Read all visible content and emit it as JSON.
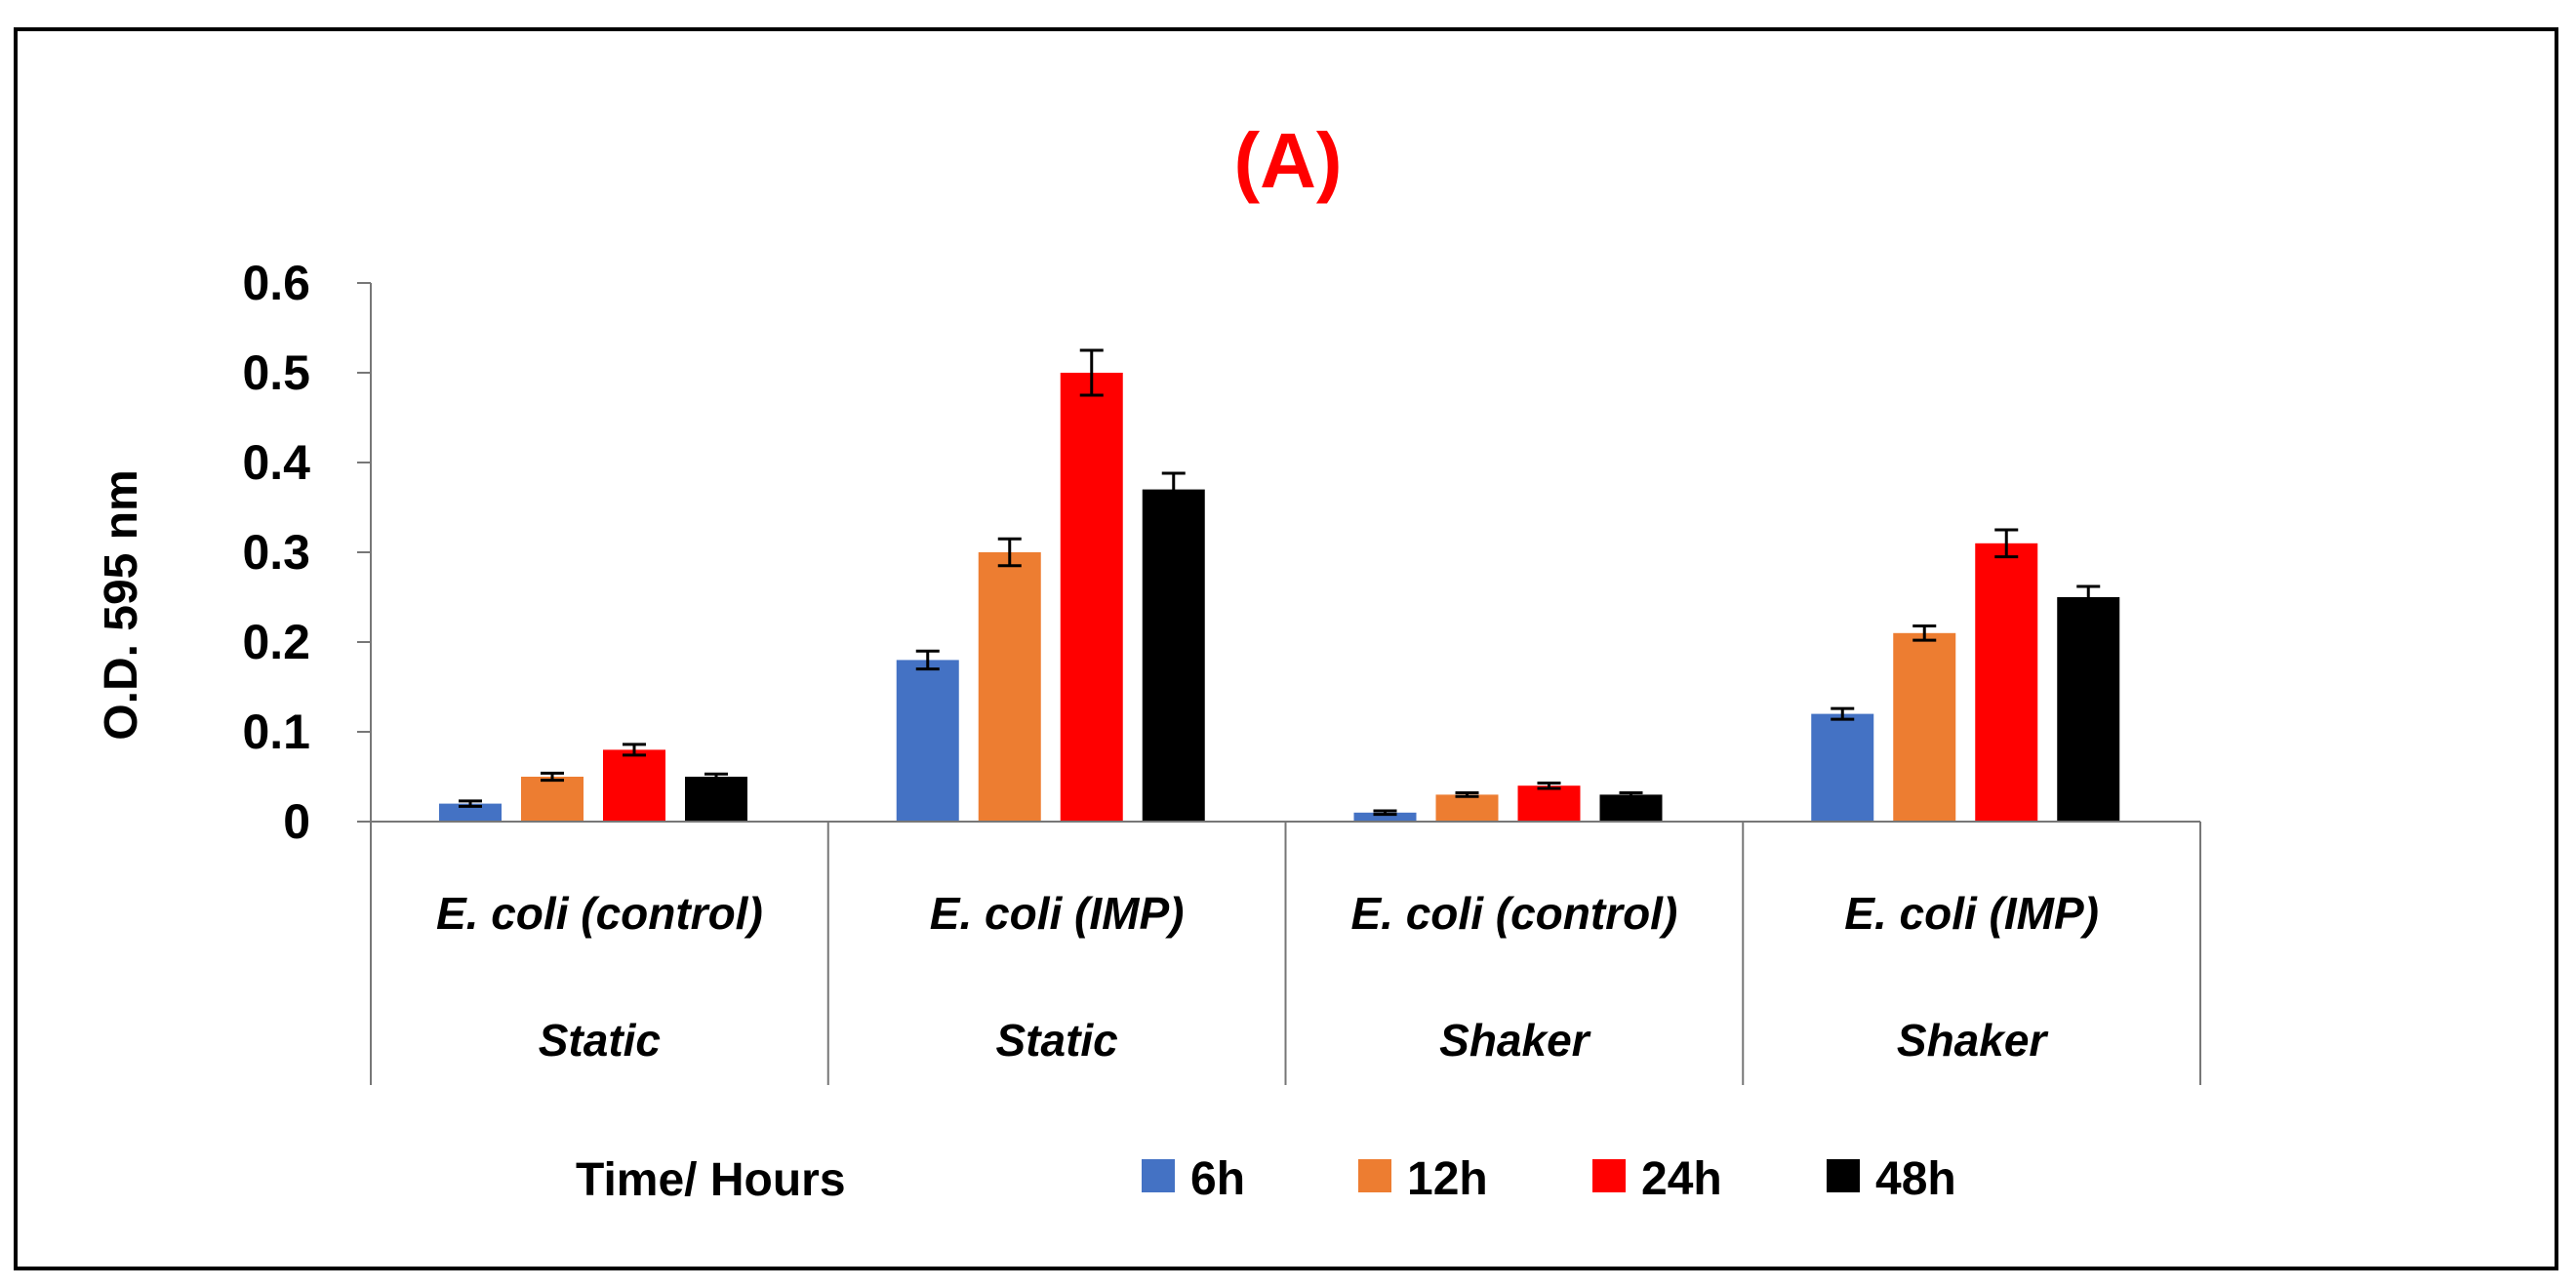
{
  "chart_data": {
    "type": "bar",
    "title": "(A)",
    "title_color": "#ff0000",
    "ylabel": "O.D. 595 nm",
    "xlabel": "Time/ Hours",
    "ylim": [
      0,
      0.6
    ],
    "yticks": [
      "0",
      "0.1",
      "0.2",
      "0.3",
      "0.4",
      "0.5",
      "0.6"
    ],
    "grid": false,
    "legend_position": "bottom",
    "categories": [
      {
        "name": "E. coli (control)",
        "group": "Static"
      },
      {
        "name": "E. coli (IMP)",
        "group": "Static"
      },
      {
        "name": "E. coli (control)",
        "group": "Shaker"
      },
      {
        "name": "E. coli (IMP)",
        "group": "Shaker"
      }
    ],
    "series": [
      {
        "name": "6h",
        "color": "#4472c4",
        "values": [
          0.02,
          0.18,
          0.01,
          0.12
        ],
        "errors": [
          0.003,
          0.01,
          0.002,
          0.006
        ]
      },
      {
        "name": "12h",
        "color": "#ed7d31",
        "values": [
          0.05,
          0.3,
          0.03,
          0.21
        ],
        "errors": [
          0.004,
          0.015,
          0.002,
          0.008
        ]
      },
      {
        "name": "24h",
        "color": "#ff0000",
        "values": [
          0.08,
          0.5,
          0.04,
          0.31
        ],
        "errors": [
          0.006,
          0.025,
          0.003,
          0.015
        ]
      },
      {
        "name": "48h",
        "color": "#000000",
        "values": [
          0.05,
          0.37,
          0.03,
          0.25
        ],
        "errors": [
          0.003,
          0.018,
          0.002,
          0.012
        ]
      }
    ]
  }
}
